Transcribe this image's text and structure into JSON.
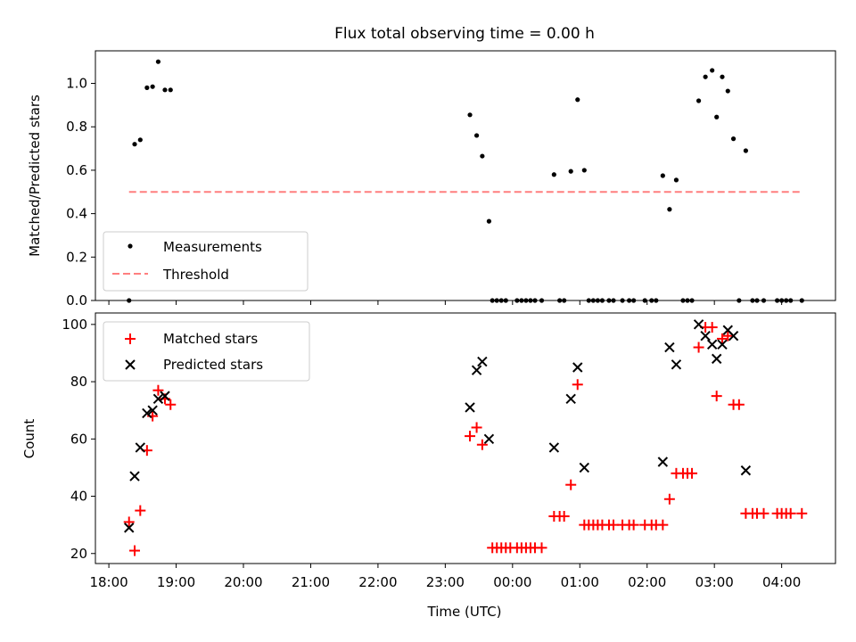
{
  "chart_data": [
    {
      "type": "scatter",
      "title": "Flux total observing time = 0.00 h",
      "ylabel": "Matched/Predicted stars",
      "xlabel": "",
      "ylim": [
        0,
        1.15
      ],
      "xlim": [
        "17:48",
        "04:48"
      ],
      "yticks": [
        0.0,
        0.2,
        0.4,
        0.6,
        0.8,
        1.0
      ],
      "ytick_labels": [
        "0.0",
        "0.2",
        "0.4",
        "0.6",
        "0.8",
        "1.0"
      ],
      "legend": {
        "placement": "lower-left",
        "entries": [
          "Measurements",
          "Threshold"
        ]
      },
      "threshold": {
        "name": "Threshold",
        "value": 0.5,
        "x_start": "18:18",
        "x_end": "04:18",
        "color": "#ff7f7f"
      },
      "series": [
        {
          "name": "Measurements",
          "marker": "dot",
          "color": "#000000",
          "points": [
            [
              "18:18",
              0.0
            ],
            [
              "18:23",
              0.72
            ],
            [
              "18:28",
              0.74
            ],
            [
              "18:34",
              0.98
            ],
            [
              "18:39",
              0.985
            ],
            [
              "18:44",
              1.1
            ],
            [
              "18:50",
              0.97
            ],
            [
              "18:55",
              0.97
            ],
            [
              "23:22",
              0.855
            ],
            [
              "23:28",
              0.76
            ],
            [
              "23:33",
              0.665
            ],
            [
              "23:39",
              0.365
            ],
            [
              "23:42",
              0.0
            ],
            [
              "23:46",
              0.0
            ],
            [
              "23:50",
              0.0
            ],
            [
              "23:54",
              0.0
            ],
            [
              "00:04",
              0.0
            ],
            [
              "00:08",
              0.0
            ],
            [
              "00:12",
              0.0
            ],
            [
              "00:16",
              0.0
            ],
            [
              "00:20",
              0.0
            ],
            [
              "00:26",
              0.0
            ],
            [
              "00:37",
              0.58
            ],
            [
              "00:42",
              0.0
            ],
            [
              "00:46",
              0.0
            ],
            [
              "00:52",
              0.595
            ],
            [
              "00:58",
              0.925
            ],
            [
              "01:04",
              0.6
            ],
            [
              "01:08",
              0.0
            ],
            [
              "01:12",
              0.0
            ],
            [
              "01:16",
              0.0
            ],
            [
              "01:20",
              0.0
            ],
            [
              "01:26",
              0.0
            ],
            [
              "01:30",
              0.0
            ],
            [
              "01:38",
              0.0
            ],
            [
              "01:44",
              0.0
            ],
            [
              "01:48",
              0.0
            ],
            [
              "01:58",
              0.0
            ],
            [
              "02:04",
              0.0
            ],
            [
              "02:08",
              0.0
            ],
            [
              "02:14",
              0.575
            ],
            [
              "02:20",
              0.42
            ],
            [
              "02:26",
              0.555
            ],
            [
              "02:32",
              0.0
            ],
            [
              "02:36",
              0.0
            ],
            [
              "02:40",
              0.0
            ],
            [
              "02:46",
              0.92
            ],
            [
              "02:52",
              1.03
            ],
            [
              "02:58",
              1.06
            ],
            [
              "03:02",
              0.845
            ],
            [
              "03:07",
              1.03
            ],
            [
              "03:12",
              0.965
            ],
            [
              "03:17",
              0.745
            ],
            [
              "03:22",
              0.0
            ],
            [
              "03:28",
              0.69
            ],
            [
              "03:34",
              0.0
            ],
            [
              "03:38",
              0.0
            ],
            [
              "03:44",
              0.0
            ],
            [
              "03:56",
              0.0
            ],
            [
              "04:00",
              0.0
            ],
            [
              "04:04",
              0.0
            ],
            [
              "04:08",
              0.0
            ],
            [
              "04:18",
              0.0
            ]
          ]
        }
      ]
    },
    {
      "type": "scatter",
      "ylabel": "Count",
      "xlabel": "Time (UTC)",
      "ylim": [
        16.5,
        104
      ],
      "xlim": [
        "17:48",
        "04:48"
      ],
      "yticks": [
        20,
        40,
        60,
        80,
        100
      ],
      "ytick_labels": [
        "20",
        "40",
        "60",
        "80",
        "100"
      ],
      "xticks": [
        "18:00",
        "19:00",
        "20:00",
        "21:00",
        "22:00",
        "23:00",
        "00:00",
        "01:00",
        "02:00",
        "03:00",
        "04:00"
      ],
      "xtick_labels": [
        "18:00",
        "19:00",
        "20:00",
        "21:00",
        "22:00",
        "23:00",
        "00:00",
        "01:00",
        "02:00",
        "03:00",
        "04:00"
      ],
      "legend": {
        "placement": "top-left",
        "entries": [
          "Matched stars",
          "Predicted stars"
        ]
      },
      "series": [
        {
          "name": "Matched stars",
          "marker": "plus",
          "color": "#ff0000",
          "points": [
            [
              "18:18",
              31
            ],
            [
              "18:23",
              21
            ],
            [
              "18:28",
              35
            ],
            [
              "18:34",
              56
            ],
            [
              "18:39",
              68
            ],
            [
              "18:44",
              77
            ],
            [
              "18:50",
              74
            ],
            [
              "18:55",
              72
            ],
            [
              "23:22",
              61
            ],
            [
              "23:28",
              64
            ],
            [
              "23:33",
              58
            ],
            [
              "23:42",
              22
            ],
            [
              "23:46",
              22
            ],
            [
              "23:50",
              22
            ],
            [
              "23:54",
              22
            ],
            [
              "23:58",
              22
            ],
            [
              "00:04",
              22
            ],
            [
              "00:08",
              22
            ],
            [
              "00:12",
              22
            ],
            [
              "00:16",
              22
            ],
            [
              "00:20",
              22
            ],
            [
              "00:26",
              22
            ],
            [
              "00:37",
              33
            ],
            [
              "00:42",
              33
            ],
            [
              "00:46",
              33
            ],
            [
              "00:52",
              44
            ],
            [
              "00:58",
              79
            ],
            [
              "01:04",
              30
            ],
            [
              "01:08",
              30
            ],
            [
              "01:12",
              30
            ],
            [
              "01:16",
              30
            ],
            [
              "01:20",
              30
            ],
            [
              "01:26",
              30
            ],
            [
              "01:30",
              30
            ],
            [
              "01:38",
              30
            ],
            [
              "01:44",
              30
            ],
            [
              "01:48",
              30
            ],
            [
              "01:58",
              30
            ],
            [
              "02:04",
              30
            ],
            [
              "02:08",
              30
            ],
            [
              "02:14",
              30
            ],
            [
              "02:20",
              39
            ],
            [
              "02:26",
              48
            ],
            [
              "02:32",
              48
            ],
            [
              "02:36",
              48
            ],
            [
              "02:40",
              48
            ],
            [
              "02:46",
              92
            ],
            [
              "02:52",
              99
            ],
            [
              "02:58",
              99
            ],
            [
              "03:02",
              75
            ],
            [
              "03:07",
              95
            ],
            [
              "03:12",
              96
            ],
            [
              "03:17",
              72
            ],
            [
              "03:22",
              72
            ],
            [
              "03:28",
              34
            ],
            [
              "03:34",
              34
            ],
            [
              "03:38",
              34
            ],
            [
              "03:44",
              34
            ],
            [
              "03:56",
              34
            ],
            [
              "04:00",
              34
            ],
            [
              "04:04",
              34
            ],
            [
              "04:08",
              34
            ],
            [
              "04:18",
              34
            ]
          ]
        },
        {
          "name": "Predicted stars",
          "marker": "x",
          "color": "#000000",
          "points": [
            [
              "18:18",
              29
            ],
            [
              "18:23",
              47
            ],
            [
              "18:28",
              57
            ],
            [
              "18:34",
              69
            ],
            [
              "18:39",
              70
            ],
            [
              "18:44",
              74
            ],
            [
              "18:50",
              75
            ],
            [
              "23:22",
              71
            ],
            [
              "23:28",
              84
            ],
            [
              "23:33",
              87
            ],
            [
              "23:39",
              60
            ],
            [
              "00:37",
              57
            ],
            [
              "00:52",
              74
            ],
            [
              "00:58",
              85
            ],
            [
              "01:04",
              50
            ],
            [
              "02:14",
              52
            ],
            [
              "02:20",
              92
            ],
            [
              "02:26",
              86
            ],
            [
              "02:46",
              100
            ],
            [
              "02:52",
              96
            ],
            [
              "02:58",
              93
            ],
            [
              "03:02",
              88
            ],
            [
              "03:07",
              93
            ],
            [
              "03:12",
              98
            ],
            [
              "03:17",
              96
            ],
            [
              "03:28",
              49
            ]
          ]
        }
      ]
    }
  ]
}
